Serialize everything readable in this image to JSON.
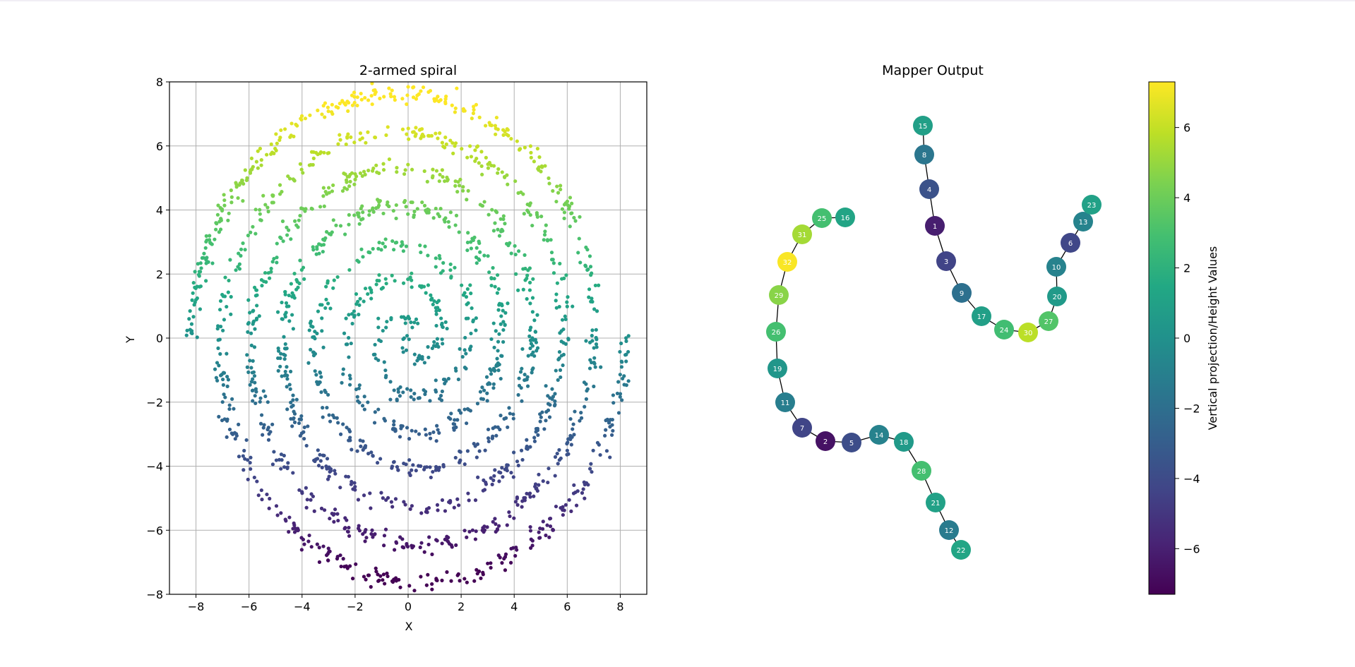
{
  "chart_data": [
    {
      "type": "scatter",
      "title": "2-armed spiral",
      "xlabel": "X",
      "ylabel": "Y",
      "xlim": [
        -9,
        9
      ],
      "ylim": [
        -8,
        8
      ],
      "xticks": [
        "−8",
        "−6",
        "−4",
        "−2",
        "0",
        "2",
        "4",
        "6",
        "8"
      ],
      "yticks": [
        "−8",
        "−6",
        "−4",
        "−2",
        "0",
        "2",
        "4",
        "6",
        "8"
      ],
      "grid": true,
      "colormap": "viridis",
      "color_value": "y",
      "spiral": {
        "arms": 2,
        "points_per_arm": 1000,
        "radius_start": 0,
        "radius_end": 8.2,
        "angle_span_rad": 22.0,
        "noise": 0.14
      }
    },
    {
      "type": "graph",
      "title": "Mapper Output",
      "colormap": "viridis",
      "nodes": [
        {
          "id": "1",
          "value": -6.1
        },
        {
          "id": "2",
          "value": -6.6
        },
        {
          "id": "3",
          "value": -4.4
        },
        {
          "id": "4",
          "value": -3.6
        },
        {
          "id": "5",
          "value": -3.9
        },
        {
          "id": "6",
          "value": -4.2
        },
        {
          "id": "7",
          "value": -4.3
        },
        {
          "id": "8",
          "value": -1.6
        },
        {
          "id": "9",
          "value": -1.9
        },
        {
          "id": "10",
          "value": -0.9
        },
        {
          "id": "11",
          "value": -1.1
        },
        {
          "id": "12",
          "value": -1.3
        },
        {
          "id": "13",
          "value": -0.8
        },
        {
          "id": "14",
          "value": -0.9
        },
        {
          "id": "15",
          "value": 0.9
        },
        {
          "id": "16",
          "value": 1.2
        },
        {
          "id": "17",
          "value": 0.9
        },
        {
          "id": "18",
          "value": 0.6
        },
        {
          "id": "19",
          "value": 0.3
        },
        {
          "id": "20",
          "value": 0.6
        },
        {
          "id": "21",
          "value": 1.0
        },
        {
          "id": "22",
          "value": 1.3
        },
        {
          "id": "23",
          "value": 1.0
        },
        {
          "id": "24",
          "value": 2.8
        },
        {
          "id": "25",
          "value": 2.9
        },
        {
          "id": "26",
          "value": 2.9
        },
        {
          "id": "27",
          "value": 3.3
        },
        {
          "id": "28",
          "value": 2.9
        },
        {
          "id": "29",
          "value": 4.7
        },
        {
          "id": "30",
          "value": 5.8
        },
        {
          "id": "31",
          "value": 5.3
        },
        {
          "id": "32",
          "value": 7.2
        }
      ],
      "edges": [
        [
          "15",
          "8"
        ],
        [
          "8",
          "4"
        ],
        [
          "4",
          "1"
        ],
        [
          "1",
          "3"
        ],
        [
          "3",
          "9"
        ],
        [
          "9",
          "17"
        ],
        [
          "17",
          "24"
        ],
        [
          "24",
          "30"
        ],
        [
          "30",
          "27"
        ],
        [
          "27",
          "20"
        ],
        [
          "20",
          "10"
        ],
        [
          "10",
          "6"
        ],
        [
          "6",
          "13"
        ],
        [
          "13",
          "23"
        ],
        [
          "16",
          "25"
        ],
        [
          "25",
          "31"
        ],
        [
          "31",
          "32"
        ],
        [
          "32",
          "29"
        ],
        [
          "29",
          "26"
        ],
        [
          "26",
          "19"
        ],
        [
          "19",
          "11"
        ],
        [
          "11",
          "7"
        ],
        [
          "7",
          "2"
        ],
        [
          "2",
          "5"
        ],
        [
          "5",
          "14"
        ],
        [
          "14",
          "18"
        ],
        [
          "18",
          "28"
        ],
        [
          "28",
          "21"
        ],
        [
          "21",
          "12"
        ],
        [
          "12",
          "22"
        ]
      ]
    },
    {
      "type": "colorbar",
      "label": "Vertical projection/Height Values",
      "range": [
        -7.3,
        7.3
      ],
      "ticks": [
        {
          "value": 6,
          "label": "6"
        },
        {
          "value": 4,
          "label": "4"
        },
        {
          "value": 2,
          "label": "2"
        },
        {
          "value": 0,
          "label": "0"
        },
        {
          "value": -2,
          "label": "−2"
        },
        {
          "value": -4,
          "label": "−4"
        },
        {
          "value": -6,
          "label": "−6"
        }
      ]
    }
  ]
}
